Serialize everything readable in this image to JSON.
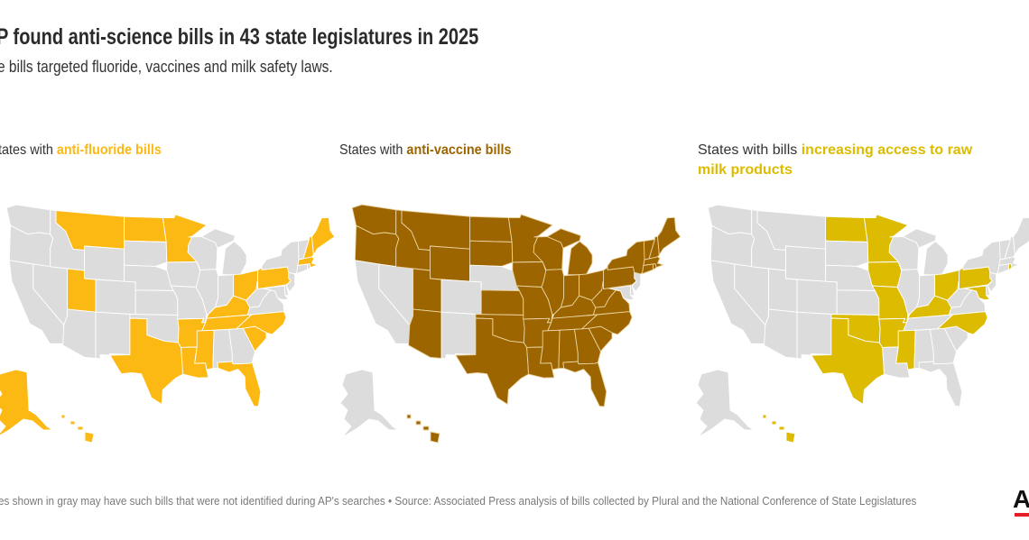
{
  "title": "P found anti-science bills in 43 state legislatures in 2025",
  "subtitle": "e bills targeted fluoride, vaccines and milk safety laws.",
  "panels": [
    {
      "heading_prefix": "tates with ",
      "heading_highlight": "anti-fluoride bills",
      "color": "#FDB913",
      "stroke": "#ffffff",
      "states": [
        "MT",
        "ND",
        "MN",
        "UT",
        "TX",
        "AR",
        "LA",
        "MS",
        "KY",
        "TN",
        "NC",
        "SC",
        "FL",
        "OH",
        "PA",
        "ME",
        "NH",
        "MA",
        "AK",
        "HI"
      ]
    },
    {
      "heading_prefix": "States with ",
      "heading_highlight": "anti-vaccine bills",
      "color": "#9C6500",
      "stroke": "#EAD3A0",
      "states": [
        "WA",
        "OR",
        "ID",
        "MT",
        "WY",
        "UT",
        "AZ",
        "ND",
        "SD",
        "KS",
        "OK",
        "TX",
        "MN",
        "IA",
        "MO",
        "AR",
        "LA",
        "WI",
        "IL",
        "MI",
        "IN",
        "OH",
        "KY",
        "TN",
        "MS",
        "AL",
        "GA",
        "FL",
        "SC",
        "NC",
        "VA",
        "WV",
        "PA",
        "NY",
        "VT",
        "NH",
        "ME",
        "MA",
        "CT",
        "RI",
        "HI"
      ]
    },
    {
      "heading_prefix": "States with bills ",
      "heading_highlight": "increasing access to raw milk products",
      "color": "#DDBB00",
      "stroke": "#ffffff",
      "states": [
        "ND",
        "MN",
        "IA",
        "MO",
        "OK",
        "TX",
        "AR",
        "MS",
        "KY",
        "OH",
        "PA",
        "MD",
        "NC",
        "RI",
        "HI"
      ]
    }
  ],
  "gray": "#DCDCDC",
  "footer": "es shown in gray may have such bills that were not identified during AP's searches • Source: Associated Press analysis of bills collected by Plural and the National Conference of State Legislatures",
  "logo": "AP"
}
